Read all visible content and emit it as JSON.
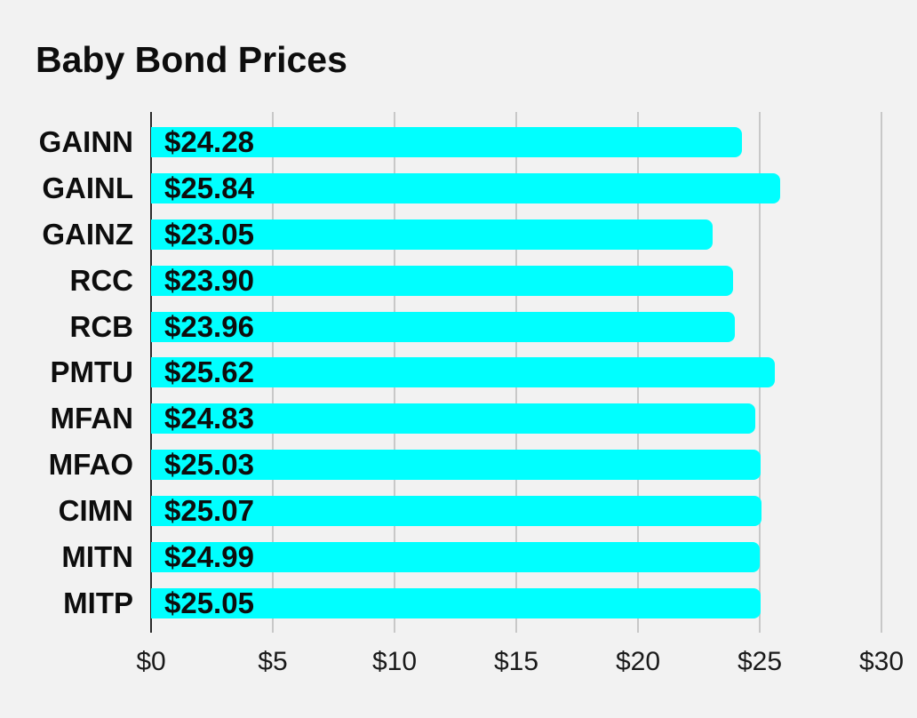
{
  "title": "Baby Bond Prices",
  "colors": {
    "background": "#f2f2f2",
    "bar": "#00ffff",
    "gridline": "#c8c8c8",
    "axis_line": "#2b2b2b",
    "text": "#0d0d0d"
  },
  "chart_data": {
    "type": "bar",
    "orientation": "horizontal",
    "title": "Baby Bond Prices",
    "categories": [
      "GAINN",
      "GAINL",
      "GAINZ",
      "RCC",
      "RCB",
      "PMTU",
      "MFAN",
      "MFAO",
      "CIMN",
      "MITN",
      "MITP"
    ],
    "values": [
      24.28,
      25.84,
      23.05,
      23.9,
      23.96,
      25.62,
      24.83,
      25.03,
      25.07,
      24.99,
      25.05
    ],
    "value_labels": [
      "$24.28",
      "$25.84",
      "$23.05",
      "$23.90",
      "$23.96",
      "$25.62",
      "$24.83",
      "$25.03",
      "$25.07",
      "$24.99",
      "$25.05"
    ],
    "xlabel": "",
    "ylabel": "",
    "xlim": [
      0,
      30
    ],
    "x_ticks": [
      0,
      5,
      10,
      15,
      20,
      25,
      30
    ],
    "x_tick_labels": [
      "$0",
      "$5",
      "$10",
      "$15",
      "$20",
      "$25",
      "$30"
    ],
    "grid": "vertical-only",
    "legend": "none",
    "value_label_position": "inside-start",
    "bar_end": "rounded-right"
  }
}
